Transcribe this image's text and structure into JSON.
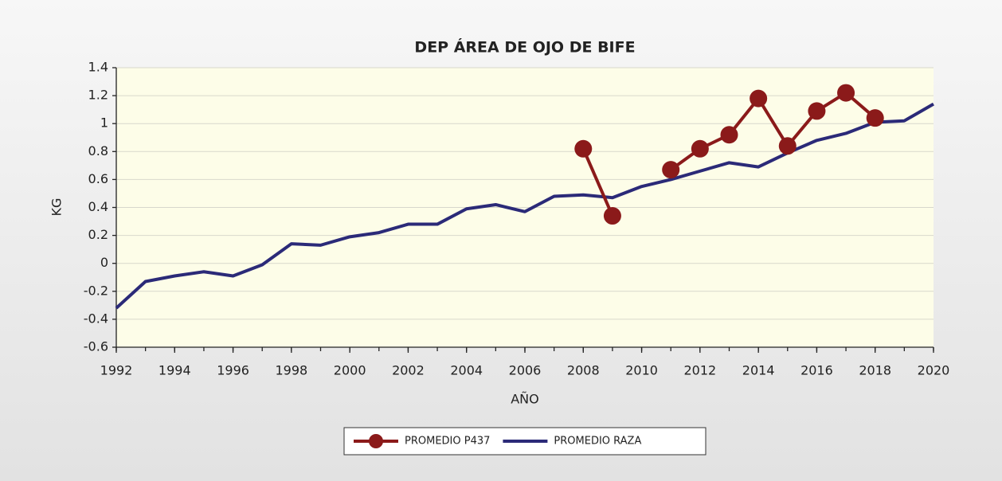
{
  "chart_data": {
    "type": "line",
    "title": "DEP ÁREA DE OJO DE BIFE",
    "x_label": "AÑO",
    "y_label": "KG",
    "x": [
      1992,
      1993,
      1994,
      1995,
      1996,
      1997,
      1998,
      1999,
      2000,
      2001,
      2002,
      2003,
      2004,
      2005,
      2006,
      2007,
      2008,
      2009,
      2010,
      2011,
      2012,
      2013,
      2014,
      2015,
      2016,
      2017,
      2018,
      2019,
      2020
    ],
    "series": [
      {
        "name": "PROMEDIO P437",
        "color": "#8b1a1a",
        "marker": "circle",
        "values": [
          null,
          null,
          null,
          null,
          null,
          null,
          null,
          null,
          null,
          null,
          null,
          null,
          null,
          null,
          null,
          null,
          0.82,
          0.34,
          null,
          0.67,
          0.82,
          0.92,
          1.18,
          0.84,
          1.09,
          1.22,
          1.04,
          null,
          null
        ]
      },
      {
        "name": "PROMEDIO RAZA",
        "color": "#2b2a78",
        "values": [
          -0.32,
          -0.13,
          -0.09,
          -0.06,
          -0.09,
          -0.01,
          0.14,
          0.13,
          0.19,
          0.22,
          0.28,
          0.28,
          0.39,
          0.42,
          0.37,
          0.48,
          0.49,
          0.47,
          0.55,
          0.6,
          0.66,
          0.72,
          0.69,
          0.79,
          0.88,
          0.93,
          1.01,
          1.02,
          1.14
        ]
      }
    ],
    "xlim": [
      1992,
      2020
    ],
    "xticks": [
      1992,
      1994,
      1996,
      1998,
      2000,
      2002,
      2004,
      2006,
      2008,
      2010,
      2012,
      2014,
      2016,
      2018,
      2020
    ],
    "ylim": [
      -0.6,
      1.4
    ],
    "yticks": [
      -0.6,
      -0.4,
      -0.2,
      0,
      0.2,
      0.4,
      0.6,
      0.8,
      1,
      1.2,
      1.4
    ],
    "grid": true,
    "legend": "bottom"
  }
}
